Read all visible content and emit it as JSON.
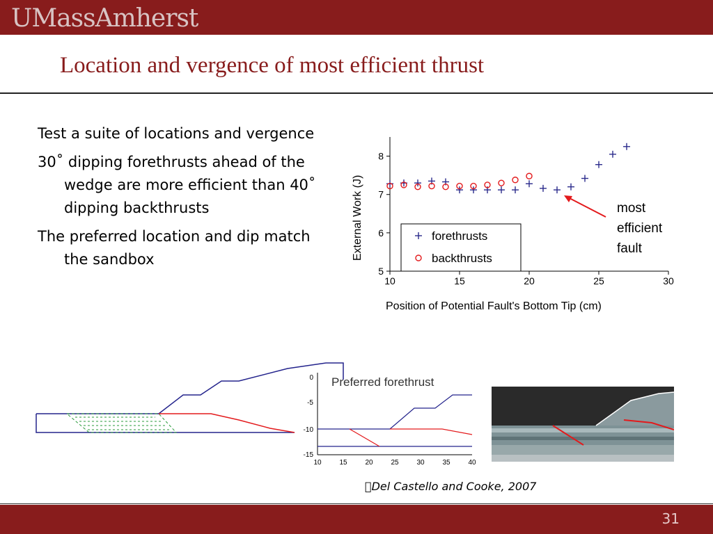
{
  "header": {
    "logo_text": "UMassAmherst",
    "brand_color": "#881c1c"
  },
  "slide": {
    "title": "Location and vergence of most efficient thrust",
    "page_number": "31"
  },
  "bullets": [
    "Test a suite of locations and vergence",
    "30˚ dipping forethrusts ahead of the wedge are more efficient than 40˚ dipping backthrusts",
    "The preferred location and dip match the sandbox"
  ],
  "citation": "\u0000Del Castello and Cooke, 2007",
  "annotation": {
    "text_lines": [
      "most",
      "efficient",
      "fault"
    ],
    "arrow_color": "#e31a1c"
  },
  "profile_inset": {
    "title": "Preferred forethrust",
    "y_ticks": [
      "0",
      "-5",
      "-10",
      "-15"
    ],
    "x_ticks": [
      "10",
      "15",
      "20",
      "25",
      "30",
      "35",
      "40"
    ]
  },
  "chart_data": {
    "type": "scatter",
    "title": "",
    "xlabel": "Position of Potential Fault's Bottom Tip (cm)",
    "ylabel": "External Work (J)",
    "xlim": [
      10,
      30
    ],
    "ylim": [
      5,
      8.5
    ],
    "x_ticks": [
      10,
      15,
      20,
      25,
      30
    ],
    "y_ticks": [
      5,
      6,
      7,
      8
    ],
    "grid": false,
    "legend_position": "bottom-left",
    "series": [
      {
        "name": "forethrusts",
        "marker": "plus",
        "color": "#2b2b8c",
        "points": [
          [
            10,
            7.28
          ],
          [
            11,
            7.3
          ],
          [
            12,
            7.3
          ],
          [
            13,
            7.35
          ],
          [
            14,
            7.33
          ],
          [
            15,
            7.12
          ],
          [
            16,
            7.12
          ],
          [
            17,
            7.12
          ],
          [
            18,
            7.12
          ],
          [
            19,
            7.12
          ],
          [
            20,
            7.28
          ],
          [
            21,
            7.16
          ],
          [
            22,
            7.12
          ],
          [
            23,
            7.2
          ],
          [
            24,
            7.42
          ],
          [
            25,
            7.78
          ],
          [
            26,
            8.05
          ],
          [
            27,
            8.25
          ]
        ]
      },
      {
        "name": "backthrusts",
        "marker": "circle",
        "color": "#e31a1c",
        "points": [
          [
            10,
            7.22
          ],
          [
            11,
            7.25
          ],
          [
            12,
            7.2
          ],
          [
            13,
            7.22
          ],
          [
            14,
            7.2
          ],
          [
            15,
            7.22
          ],
          [
            16,
            7.22
          ],
          [
            17,
            7.25
          ],
          [
            18,
            7.3
          ],
          [
            19,
            7.38
          ],
          [
            20,
            7.48
          ]
        ]
      }
    ]
  }
}
